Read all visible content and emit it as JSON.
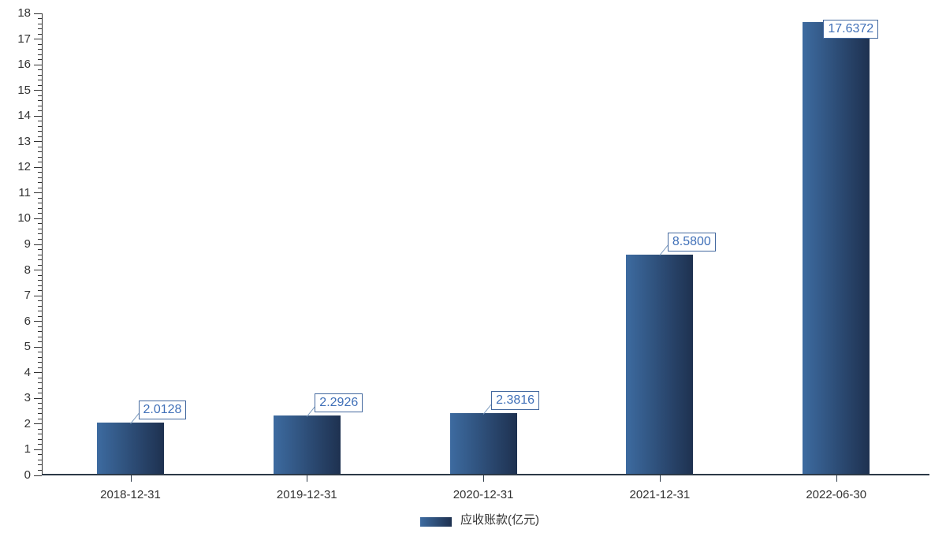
{
  "chart_data": {
    "type": "bar",
    "title": "",
    "categories": [
      "2018-12-31",
      "2019-12-31",
      "2020-12-31",
      "2021-12-31",
      "2022-06-30"
    ],
    "series": [
      {
        "name": "应收账款(亿元)",
        "values": [
          2.0128,
          2.2926,
          2.3816,
          8.58,
          17.6372
        ]
      }
    ],
    "value_labels": [
      "2.0128",
      "2.2926",
      "2.3816",
      "8.5800",
      "17.6372"
    ],
    "xlabel": "",
    "ylabel": "",
    "ylim": [
      0,
      18
    ],
    "y_major_step": 1,
    "y_minor_divisions": 5,
    "grid": false,
    "legend_position": "bottom-center",
    "colors": {
      "bar_gradient_left": "#3d6ba0",
      "bar_gradient_right": "#1e3150",
      "value_label_text": "#4070b8",
      "value_label_border": "#44699f",
      "connector_line": "#7e9cbf",
      "x_axis_line": "#2c3947",
      "y_axis_line": "#333333",
      "tick_label": "#333333",
      "background": "#ffffff"
    }
  }
}
